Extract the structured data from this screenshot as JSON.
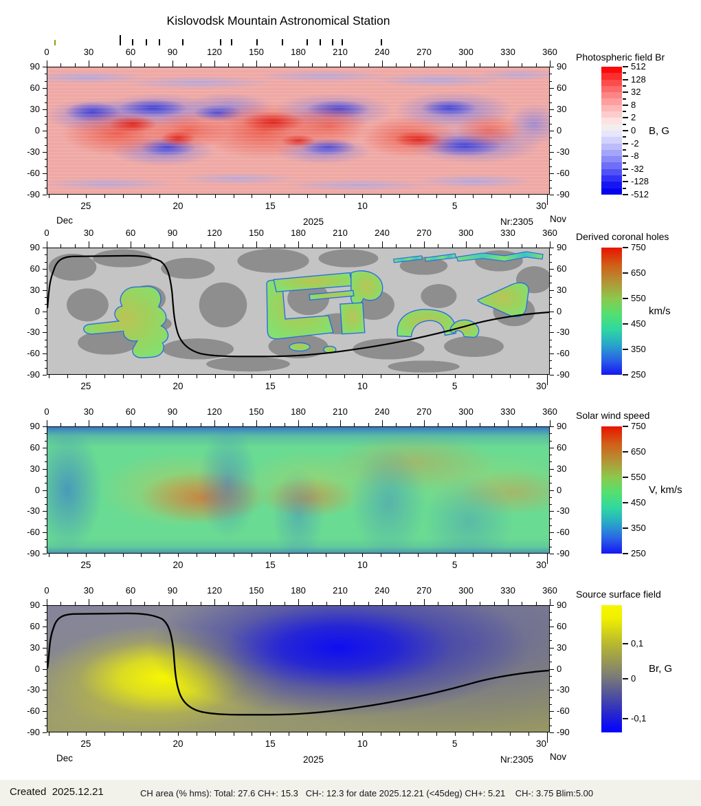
{
  "title": "Kislovodsk Mountain Astronomical Station",
  "axes": {
    "lon_labels": [
      "0",
      "30",
      "60",
      "90",
      "120",
      "150",
      "180",
      "210",
      "240",
      "270",
      "300",
      "330",
      "360"
    ],
    "lat_labels": [
      "90",
      "60",
      "30",
      "0",
      "-30",
      "-60",
      "-90"
    ],
    "day_labels": [
      {
        "text": "25",
        "f": 0.0777
      },
      {
        "text": "20",
        "f": 0.261
      },
      {
        "text": "15",
        "f": 0.4443
      },
      {
        "text": "10",
        "f": 0.6276
      },
      {
        "text": "5",
        "f": 0.8109
      },
      {
        "text": "30",
        "f": 0.983
      }
    ],
    "day_ticks": {
      "long_f": 0.9943,
      "step": 0.0366573,
      "count": 28
    },
    "month_row": {
      "dec": "Dec",
      "year": "2025",
      "rotation": "Nr:2305",
      "nov": "Nov"
    }
  },
  "active_region_marks": {
    "olive_lons": [
      5.4
    ],
    "olive_color": "#9a9a10",
    "tall_lon": 52,
    "black_lons": [
      52,
      61,
      71,
      80,
      97,
      124,
      132,
      150,
      168,
      186,
      195,
      204,
      211,
      239
    ]
  },
  "panels": [
    {
      "id": "pf",
      "label": "Photospheric field Br",
      "colorbar": {
        "title": "Photospheric field Br",
        "unit": "B, G",
        "type": "steps",
        "tick_labels": [
          "512",
          "128",
          "32",
          "8",
          "2",
          "0",
          "-2",
          "-8",
          "-32",
          "-128",
          "-512"
        ],
        "step_colors": [
          "#fa0a0a",
          "#fb2d2d",
          "#fc4c4c",
          "#fd6a6a",
          "#fd8585",
          "#fe9f9f",
          "#feb7b7",
          "#fecccc",
          "#fee2e2",
          "#f2eeee",
          "#e6e6fd",
          "#d2d2fc",
          "#bcbcfb",
          "#a4a4fa",
          "#8a8af9",
          "#6e6ef8",
          "#5151f7",
          "#3232f6",
          "#1616f3",
          "#0404ee"
        ]
      }
    },
    {
      "id": "ch",
      "label": "Derived coronal holes",
      "colorbar": {
        "title": "Derived coronal holes",
        "unit": "km/s",
        "type": "gradient",
        "tick_labels": [
          "750",
          "650",
          "550",
          "450",
          "350",
          "250"
        ],
        "stops": [
          [
            "#e81400",
            0
          ],
          [
            "#d06018",
            14
          ],
          [
            "#b09838",
            28
          ],
          [
            "#8cc84c",
            40
          ],
          [
            "#54e070",
            52
          ],
          [
            "#30d8a0",
            64
          ],
          [
            "#28a8c8",
            76
          ],
          [
            "#2a64e6",
            88
          ],
          [
            "#1616f2",
            100
          ]
        ]
      }
    },
    {
      "id": "sw",
      "label": "Solar wind speed",
      "colorbar": {
        "title": "Solar wind speed",
        "unit": "V, km/s",
        "type": "gradient",
        "tick_labels": [
          "750",
          "650",
          "550",
          "450",
          "350",
          "250"
        ],
        "stops": [
          [
            "#e81400",
            0
          ],
          [
            "#d06018",
            14
          ],
          [
            "#b09838",
            28
          ],
          [
            "#8cc84c",
            40
          ],
          [
            "#54e070",
            52
          ],
          [
            "#30d8a0",
            64
          ],
          [
            "#28a8c8",
            76
          ],
          [
            "#2a64e6",
            88
          ],
          [
            "#1616f2",
            100
          ]
        ]
      }
    },
    {
      "id": "ss",
      "label": "Source surface field",
      "colorbar": {
        "title": "Source surface field",
        "unit": "Br, G",
        "type": "gradient",
        "tick_labels": [
          "0,1",
          "0",
          "-0,1"
        ],
        "tick_f": [
          0.3,
          0.58,
          0.89
        ],
        "stops": [
          [
            "#f6f600",
            0
          ],
          [
            "#f0f000",
            10
          ],
          [
            "#b4b434",
            32
          ],
          [
            "#7e7e74",
            55
          ],
          [
            "#50509e",
            71
          ],
          [
            "#2828cc",
            85
          ],
          [
            "#0a0af6",
            96
          ],
          [
            "#0606fa",
            100
          ]
        ]
      }
    }
  ],
  "footer": {
    "created": "Created  2025.12.21",
    "ch_area": "CH area (% hms): Total: 27.6 CH+: 15.3   CH-: 12.3 for date 2025.12.21 (<45deg) CH+: 5.21    CH-: 3.75 Blim:5.00"
  },
  "chart_data": [
    {
      "type": "heatmap",
      "panel": "Photospheric field Br",
      "unit": "B, G",
      "colormap": "red-white-blue, discrete log steps",
      "colorbar_ticks": [
        512,
        128,
        32,
        8,
        2,
        0,
        -2,
        -8,
        -32,
        -128,
        -512
      ],
      "x_axis": {
        "label": "Carrington longitude (deg)",
        "range": [
          0,
          360
        ],
        "tick_step": 30,
        "minor_step": 10
      },
      "y_axis": {
        "label": "latitude (deg)",
        "range": [
          -90,
          90
        ],
        "ticks": [
          90,
          60,
          30,
          0,
          -30,
          -60,
          -90
        ]
      },
      "time_axis": {
        "direction": "right-to-left",
        "day_labels": [
          25,
          20,
          15,
          10,
          5,
          30
        ],
        "month_left": "Dec",
        "month_right": "Nov",
        "year": 2025,
        "carrington_rotation": "Nr:2305"
      },
      "active_region_longitude_marks": [
        5,
        52,
        61,
        71,
        80,
        97,
        124,
        132,
        150,
        168,
        186,
        195,
        204,
        211,
        239
      ],
      "description": "Synoptic magnetogram: red = positive Br, blue = negative Br; mottled active-region field concentrated within +/-45 deg latitude, pale striped field near poles"
    },
    {
      "type": "heatmap",
      "panel": "Derived coronal holes",
      "unit": "km/s",
      "colormap": "jet (250-750 km/s) for holes over two-tone gray quiet Sun",
      "colorbar_ticks": [
        750,
        650,
        550,
        450,
        350,
        250
      ],
      "x_axis": {
        "range": [
          0,
          360
        ],
        "tick_step": 30
      },
      "y_axis": {
        "range": [
          -90,
          90
        ]
      },
      "features": {
        "coronal_holes_lon_lat": [
          {
            "lon": [
              27,
              90
            ],
            "lat": [
              36,
              -68
            ],
            "note": "large yin-shaped hole, olive-green core"
          },
          {
            "lon": [
              157,
              242
            ],
            "lat": [
              44,
              -45
            ],
            "note": "G-shaped hole complex"
          },
          {
            "lon": [
              251,
              307
            ],
            "lat": [
              -8,
              -36
            ],
            "note": "double-arch hole"
          },
          {
            "lon": [
              308,
              346
            ],
            "lat": [
              43,
              5
            ],
            "note": "triangular hole"
          },
          {
            "lon": [
              249,
              356
            ],
            "lat": [
              88,
              78
            ],
            "note": "thin polar streak with cyan segments"
          }
        ],
        "neutral_line": "black curve: lat ~77 for lon 10-75, steep drop at lon ~90, shelf near lat -63 for lon 115-250, rising to lat ~-3 at lon 360"
      },
      "description": "Green coronal-hole areas (outlined blue) on gray background with black magnetic neutral line"
    },
    {
      "type": "heatmap",
      "panel": "Solar wind speed",
      "unit": "V, km/s",
      "colormap": "jet",
      "colorbar_ticks": [
        750,
        650,
        550,
        450,
        350,
        250
      ],
      "x_axis": {
        "range": [
          0,
          360
        ],
        "tick_step": 30
      },
      "y_axis": {
        "range": [
          -90,
          90
        ]
      },
      "features": {
        "fast_stream_cores_lon_lat": [
          [
            108,
            -13
          ],
          [
            187,
            -11
          ],
          [
            263,
            40
          ],
          [
            335,
            -4
          ]
        ],
        "slow_wind": "blue feathered channels along top/bottom boundaries and between stream cells"
      },
      "description": "Smooth green map (~450-550 km/s) with orange-brown fast streams and blue slow-wind lanes"
    },
    {
      "type": "heatmap",
      "panel": "Source surface field",
      "unit": "Br, G",
      "colormap": "yellow-gray-blue",
      "colorbar_ticks": [
        "0,1",
        "0",
        "-0,1"
      ],
      "x_axis": {
        "range": [
          0,
          360
        ],
        "tick_step": 30
      },
      "y_axis": {
        "range": [
          -90,
          90
        ]
      },
      "features": {
        "positive_pole": {
          "lon": 83,
          "lat": -13,
          "color": "yellow"
        },
        "negative_pole": {
          "lon": 209,
          "lat": 31,
          "color": "blue"
        },
        "neutral_line": "same shape as coronal-hole panel"
      },
      "description": "Bipolar source-surface field with black neutral line"
    }
  ]
}
